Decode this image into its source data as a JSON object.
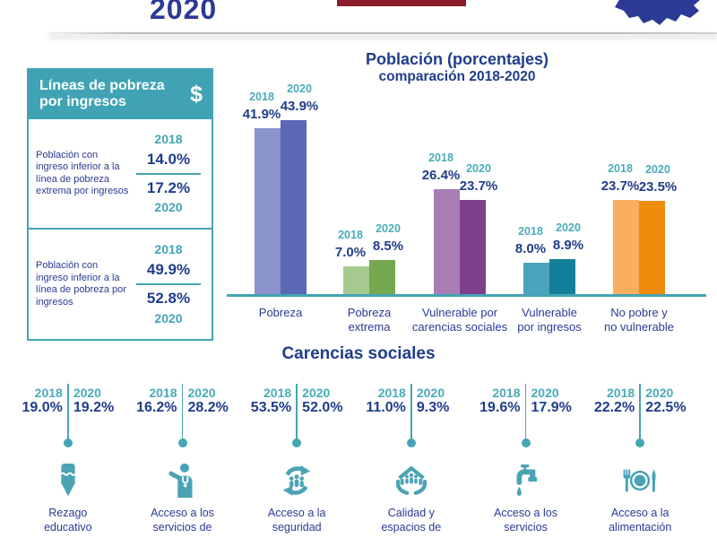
{
  "header": {
    "year_logo": "2020"
  },
  "poverty_lines_box": {
    "title": "Líneas de pobreza por ingresos",
    "currency_symbol": "$",
    "rows": [
      {
        "label": "Población con ingreso inferior a la línea de pobreza extrema por ingresos",
        "year_top": "2018",
        "value_top": "14.0%",
        "value_bottom": "17.2%",
        "year_bottom": "2020"
      },
      {
        "label": "Población con ingreso inferior a la línea de pobreza por ingresos",
        "year_top": "2018",
        "value_top": "49.9%",
        "value_bottom": "52.8%",
        "year_bottom": "2020"
      }
    ]
  },
  "chart_data": {
    "type": "bar",
    "title": "Población (porcentajes)",
    "subtitle": "comparación 2018-2020",
    "categories": [
      "Pobreza",
      "Pobreza\nextrema",
      "Vulnerable por\ncarencias sociales",
      "Vulnerable\npor ingresos",
      "No pobre y\nno vulnerable"
    ],
    "series": [
      {
        "name": "2018",
        "values": [
          41.9,
          7.0,
          26.4,
          8.0,
          23.7
        ],
        "colors": [
          "#8b93cc",
          "#a5c98e",
          "#a87eb4",
          "#4aa4bb",
          "#f9ae60"
        ]
      },
      {
        "name": "2020",
        "values": [
          43.9,
          8.5,
          23.7,
          8.9,
          23.5
        ],
        "colors": [
          "#5a68b5",
          "#74a94f",
          "#7d3f8a",
          "#13809a",
          "#ef8c0a"
        ]
      }
    ],
    "ylim": [
      0,
      50
    ],
    "value_suffix": "%",
    "grid": false,
    "axis_color": "#45a4b5"
  },
  "carencias": {
    "title": "Carencias sociales",
    "items": [
      {
        "year_left": "2018",
        "year_right": "2020",
        "value_left": "19.0%",
        "value_right": "19.2%",
        "icon": "pencil-icon",
        "label": "Rezago\neducativo"
      },
      {
        "year_left": "2018",
        "year_right": "2020",
        "value_left": "16.2%",
        "value_right": "28.2%",
        "icon": "doctor-icon",
        "label": "Acceso a los\nservicios de"
      },
      {
        "year_left": "2018",
        "year_right": "2020",
        "value_left": "53.5%",
        "value_right": "52.0%",
        "icon": "social-security-icon",
        "label": "Acceso a la\nseguridad"
      },
      {
        "year_left": "2018",
        "year_right": "2020",
        "value_left": "11.0%",
        "value_right": "9.3%",
        "icon": "housing-icon",
        "label": "Calidad y\nespacios de"
      },
      {
        "year_left": "2018",
        "year_right": "2020",
        "value_left": "19.6%",
        "value_right": "17.9%",
        "icon": "water-tap-icon",
        "label": "Acceso a los\nservicios"
      },
      {
        "year_left": "2018",
        "year_right": "2020",
        "value_left": "22.2%",
        "value_right": "22.5%",
        "icon": "food-icon",
        "label": "Acceso a la\nalimentación"
      }
    ]
  },
  "colors": {
    "navy_text": "#1f3d8a",
    "teal_accent": "#45a4b5",
    "header_box_bg": "#3fa3b4",
    "top_bar_red": "#8c1c2c",
    "map_blue": "#2b3a94"
  }
}
